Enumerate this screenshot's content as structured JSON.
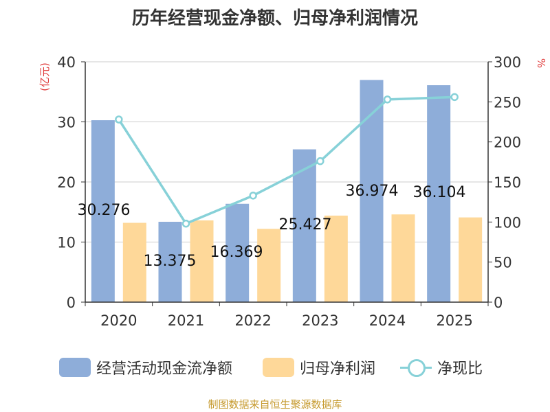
{
  "chart_data": {
    "type": "bar",
    "title": "历年经营现金净额、归母净利润情况",
    "categories": [
      "2020",
      "2021",
      "2022",
      "2023",
      "2024",
      "2025"
    ],
    "ylabel_left": "(亿元)",
    "ylabel_right": "%",
    "ylim_left": [
      0,
      40
    ],
    "ylim_right": [
      0,
      300
    ],
    "yticks_left": [
      0,
      10,
      20,
      30,
      40
    ],
    "yticks_right": [
      0,
      50,
      100,
      150,
      200,
      250,
      300
    ],
    "grid": true,
    "legend_position": "bottom",
    "series": [
      {
        "name": "经营活动现金流净额",
        "type": "bar",
        "axis": "left",
        "color": "#8eadd9",
        "values": [
          30.276,
          13.375,
          16.369,
          25.427,
          36.974,
          36.104
        ],
        "labels": [
          "30.276",
          "13.375",
          "16.369",
          "25.427",
          "36.974",
          "36.104"
        ]
      },
      {
        "name": "归母净利润",
        "type": "bar",
        "axis": "left",
        "color": "#fed899",
        "values": [
          13.2,
          13.6,
          12.2,
          14.4,
          14.6,
          14.1
        ]
      },
      {
        "name": "净现比",
        "type": "line",
        "axis": "right",
        "color": "#87d1d8",
        "values": [
          228,
          98,
          133,
          176,
          253,
          256
        ]
      }
    ],
    "source": "制图数据来自恒生聚源数据库"
  }
}
